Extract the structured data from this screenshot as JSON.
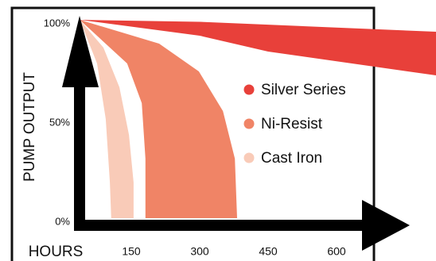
{
  "chart_data": {
    "type": "area",
    "y_label": "PUMP OUTPUT",
    "x_label": "HOURS",
    "xlim": [
      0,
      818
    ],
    "ylim": [
      0,
      100
    ],
    "xticks": [
      150,
      300,
      450,
      600
    ],
    "yticks": [
      {
        "value": 100,
        "label": "100%"
      },
      {
        "value": 50,
        "label": "50%"
      },
      {
        "value": 0,
        "label": "0%"
      }
    ],
    "series": [
      {
        "name": "Silver Series",
        "color": "#e8403a",
        "x": [
          37,
          300,
          818,
          818,
          450,
          300,
          37
        ],
        "values": [
          100,
          99,
          94,
          72,
          84,
          92,
          100
        ]
      },
      {
        "name": "Ni-Resist",
        "color": "#f08466",
        "x": [
          37,
          211,
          298,
          351,
          377,
          382,
          181,
          181,
          173,
          141,
          37
        ],
        "values": [
          100,
          88,
          74,
          54,
          30,
          0,
          0,
          30,
          58,
          78,
          100
        ]
      },
      {
        "name": "Cast Iron",
        "color": "#f9cbb8",
        "x": [
          37,
          89,
          124,
          145,
          155,
          155,
          106,
          103,
          94,
          75,
          37
        ],
        "values": [
          100,
          86,
          66,
          42,
          18,
          0,
          0,
          18,
          50,
          78,
          100
        ]
      }
    ]
  }
}
